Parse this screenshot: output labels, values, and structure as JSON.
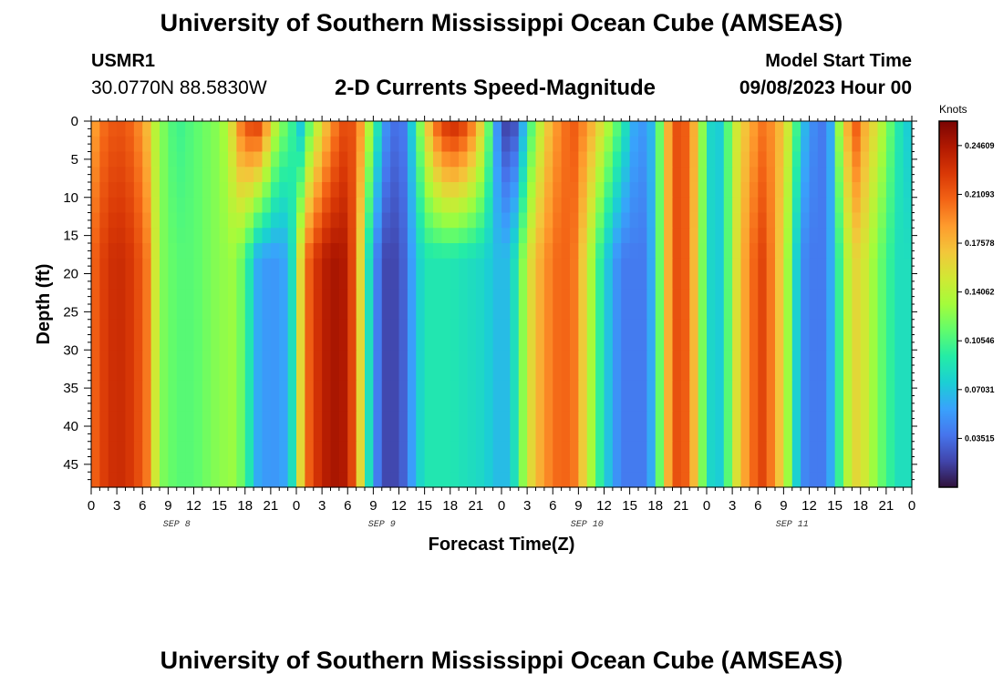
{
  "page": {
    "title_top": "University of Southern Mississippi Ocean Cube (AMSEAS)",
    "title_bottom": "University of Southern Mississippi Ocean Cube (AMSEAS)",
    "station": "USMR1",
    "coords": "30.0770N  88.5830W",
    "subtitle": "2-D Currents Speed-Magnitude",
    "start_label": "Model Start Time",
    "start_value": "09/08/2023 Hour 00"
  },
  "chart_data": {
    "type": "heatmap",
    "title": "2-D Currents Speed-Magnitude",
    "xlabel": "Forecast Time(Z)",
    "ylabel": "Depth (ft)",
    "x_range_hours": [
      0,
      96
    ],
    "y_range_ft": [
      0,
      48
    ],
    "x_tick_labels": [
      "0",
      "3",
      "6",
      "9",
      "12",
      "15",
      "18",
      "21",
      "0",
      "3",
      "6",
      "9",
      "12",
      "15",
      "18",
      "21",
      "0",
      "3",
      "6",
      "9",
      "12",
      "15",
      "18",
      "21",
      "0",
      "3",
      "6",
      "9",
      "12",
      "15",
      "18",
      "21",
      "0"
    ],
    "x_tick_step_hours": 3,
    "day_labels": [
      "SEP 8",
      "SEP 9",
      "SEP 10",
      "SEP 11"
    ],
    "y_ticks": [
      0,
      5,
      10,
      15,
      20,
      25,
      30,
      35,
      40,
      45
    ],
    "y_tick_labels": [
      "0",
      "5",
      "10",
      "15",
      "20",
      "25",
      "30",
      "35",
      "40",
      "45"
    ],
    "colorbar": {
      "units": "Knots",
      "labels": [
        "0.24609",
        "0.21093",
        "0.17578",
        "0.14062",
        "0.10546",
        "0.07031",
        "0.03515"
      ],
      "values": [
        0.24609,
        0.21093,
        0.17578,
        0.14062,
        0.10546,
        0.07031,
        0.03515
      ],
      "vmin": 0.0,
      "vmax": 0.2637,
      "colors": [
        "#30123b",
        "#4145ab",
        "#4675ed",
        "#39a2fc",
        "#1bcfd4",
        "#24eca6",
        "#61fc6c",
        "#a4fc3b",
        "#d1e834",
        "#f3c63a",
        "#fe9b2d",
        "#f36315",
        "#d93806",
        "#b11901",
        "#7a0403"
      ]
    },
    "surface_speed_knots": {
      "hours": [
        0,
        1,
        3,
        5,
        6.5,
        7.5,
        8.5,
        10,
        12,
        15,
        16,
        17.5,
        19,
        20,
        21,
        22,
        23,
        24,
        24.5,
        25.5,
        27,
        29,
        30,
        31,
        32,
        33,
        34.5,
        36,
        37,
        38,
        39,
        40,
        42,
        44,
        46,
        47,
        48,
        49,
        50,
        51,
        53,
        55,
        56.5,
        58,
        60,
        62,
        63.5,
        65,
        66,
        67,
        68,
        69,
        70,
        71,
        72,
        73,
        74,
        75,
        77,
        78.5,
        80,
        81.5,
        83,
        84,
        85.5,
        86.5,
        87.5,
        88.5,
        89.5,
        90.5,
        92,
        94,
        95,
        96
      ],
      "values": [
        0.175,
        0.2,
        0.215,
        0.205,
        0.175,
        0.14,
        0.12,
        0.1,
        0.11,
        0.125,
        0.14,
        0.2,
        0.23,
        0.22,
        0.16,
        0.13,
        0.11,
        0.09,
        0.07,
        0.11,
        0.16,
        0.21,
        0.22,
        0.21,
        0.17,
        0.11,
        0.05,
        0.03,
        0.05,
        0.1,
        0.15,
        0.2,
        0.24,
        0.22,
        0.15,
        0.08,
        0.02,
        0.015,
        0.03,
        0.09,
        0.16,
        0.2,
        0.21,
        0.19,
        0.15,
        0.1,
        0.06,
        0.05,
        0.08,
        0.15,
        0.21,
        0.22,
        0.2,
        0.16,
        0.09,
        0.07,
        0.08,
        0.14,
        0.18,
        0.2,
        0.19,
        0.15,
        0.08,
        0.05,
        0.04,
        0.06,
        0.13,
        0.18,
        0.21,
        0.18,
        0.15,
        0.1,
        0.08,
        0.07
      ]
    },
    "deep_speed_knots": {
      "hours": [
        0,
        1,
        3,
        5,
        6.5,
        7.5,
        8.5,
        10,
        12,
        15,
        17,
        18.5,
        19.5,
        21,
        23,
        24,
        24.5,
        25.5,
        27,
        29,
        30,
        31,
        32,
        33,
        34.5,
        36,
        37,
        38,
        39,
        40,
        42,
        44,
        46,
        47,
        48,
        49,
        50,
        51,
        53,
        55,
        56.5,
        58,
        60,
        62,
        63.5,
        65,
        66,
        67,
        68,
        69,
        70,
        71,
        72,
        73,
        74,
        75,
        77,
        78.5,
        80,
        81.5,
        83,
        84,
        85.5,
        86.5,
        87.5,
        88.5,
        89.5,
        90.5,
        92,
        94,
        95,
        96
      ],
      "values": [
        0.2,
        0.22,
        0.235,
        0.225,
        0.2,
        0.15,
        0.12,
        0.11,
        0.11,
        0.125,
        0.13,
        0.09,
        0.06,
        0.05,
        0.06,
        0.11,
        0.16,
        0.21,
        0.24,
        0.25,
        0.24,
        0.2,
        0.12,
        0.05,
        0.02,
        0.02,
        0.04,
        0.07,
        0.09,
        0.09,
        0.09,
        0.085,
        0.08,
        0.07,
        0.065,
        0.07,
        0.1,
        0.15,
        0.19,
        0.21,
        0.2,
        0.15,
        0.08,
        0.04,
        0.04,
        0.04,
        0.08,
        0.15,
        0.21,
        0.22,
        0.2,
        0.15,
        0.09,
        0.07,
        0.08,
        0.14,
        0.2,
        0.22,
        0.19,
        0.13,
        0.05,
        0.04,
        0.04,
        0.06,
        0.1,
        0.14,
        0.16,
        0.15,
        0.12,
        0.09,
        0.08,
        0.09
      ]
    }
  }
}
